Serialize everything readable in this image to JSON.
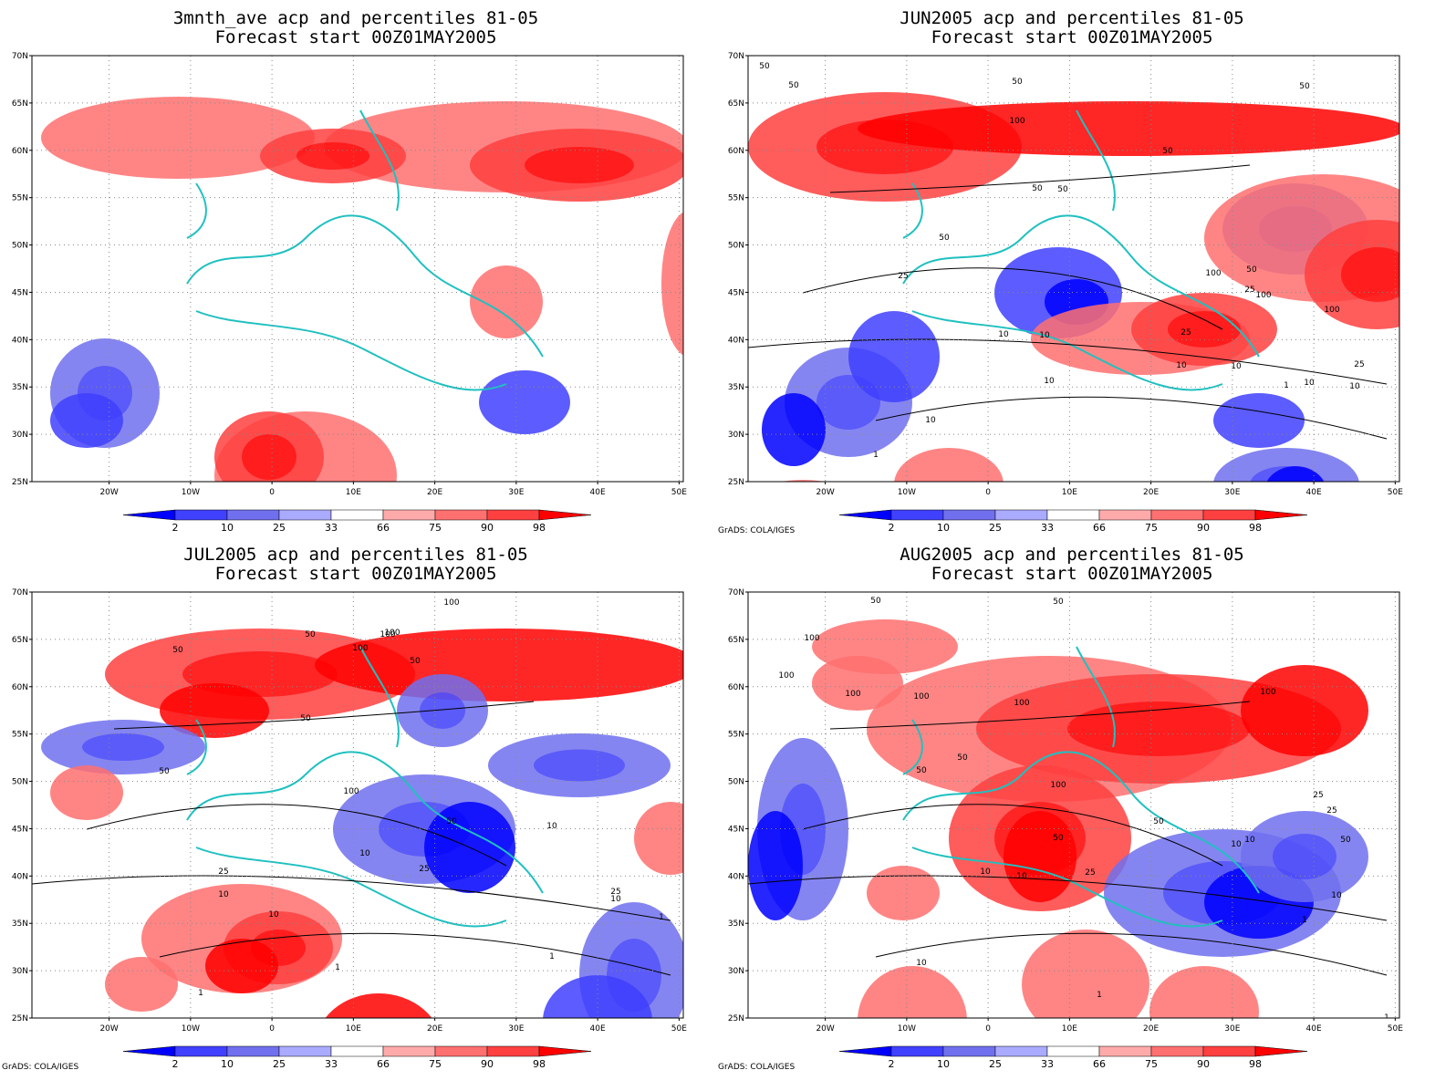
{
  "panels": [
    {
      "id": "p1",
      "title_line1": "3mnth_ave acp and percentiles 81-05",
      "title_line2": "Forecast start 00Z01MAY2005",
      "credit": ""
    },
    {
      "id": "p2",
      "title_line1": "JUN2005 acp and percentiles 81-05",
      "title_line2": "Forecast start 00Z01MAY2005",
      "credit": "GrADS: COLA/IGES"
    },
    {
      "id": "p3",
      "title_line1": "JUL2005 acp and percentiles 81-05",
      "title_line2": "Forecast start 00Z01MAY2005",
      "credit": "GrADS: COLA/IGES"
    },
    {
      "id": "p4",
      "title_line1": "AUG2005 acp and percentiles 81-05",
      "title_line2": "Forecast start 00Z01MAY2005",
      "credit": "GrADS: COLA/IGES"
    }
  ],
  "axes": {
    "lat_labels": [
      "70N",
      "65N",
      "60N",
      "55N",
      "50N",
      "45N",
      "40N",
      "35N",
      "30N",
      "25N"
    ],
    "lon_labels": [
      "20W",
      "10W",
      "0",
      "10E",
      "20E",
      "30E",
      "40E",
      "50E"
    ]
  },
  "colorbar": {
    "labels": [
      "2",
      "10",
      "25",
      "33",
      "66",
      "75",
      "90",
      "98"
    ],
    "colors": [
      "#0000ff",
      "#4040ff",
      "#7070ee",
      "#aaaaff",
      "#ffffff",
      "#ffaaaa",
      "#ff7070",
      "#ff4040",
      "#ff0000"
    ]
  },
  "contour_labels": {
    "p2": [
      "50",
      "50",
      "50",
      "50",
      "100",
      "50",
      "50",
      "50",
      "50",
      "100",
      "100",
      "50",
      "25",
      "25",
      "100",
      "10",
      "10",
      "10",
      "10",
      "25",
      "25",
      "10",
      "10",
      "10",
      "1",
      "1",
      "10"
    ],
    "p3": [
      "100",
      "100",
      "50",
      "100",
      "100",
      "50",
      "100",
      "50",
      "50",
      "50",
      "100",
      "50",
      "10",
      "10",
      "25",
      "25",
      "10",
      "10",
      "25",
      "10",
      "1",
      "1",
      "1",
      "1"
    ],
    "p4": [
      "50",
      "50",
      "100",
      "100",
      "100",
      "100",
      "100",
      "100",
      "50",
      "50",
      "100",
      "25",
      "25",
      "50",
      "50",
      "10",
      "10",
      "50",
      "10",
      "25",
      "10",
      "10",
      "1",
      "1",
      "10",
      "1"
    ]
  }
}
